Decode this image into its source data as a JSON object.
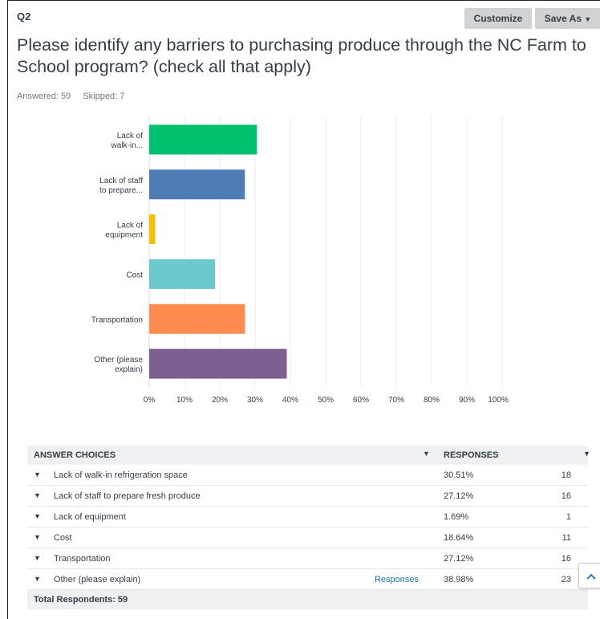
{
  "question": {
    "number": "Q2",
    "title": "Please identify any barriers to purchasing produce through the NC Farm to School program? (check all that apply)",
    "answered": "Answered: 59",
    "skipped": "Skipped: 7"
  },
  "toolbar": {
    "customize_label": "Customize",
    "save_as_label": "Save As"
  },
  "chart_data": {
    "type": "bar",
    "orientation": "horizontal",
    "categories": [
      [
        "Lack of",
        "walk-in..."
      ],
      [
        "Lack of staff",
        "to prepare..."
      ],
      [
        "Lack of",
        "equipment"
      ],
      [
        "Cost"
      ],
      [
        "Transportation"
      ],
      [
        "Other (please",
        "explain)"
      ]
    ],
    "values": [
      30.51,
      27.12,
      1.69,
      18.64,
      27.12,
      38.98
    ],
    "colors": [
      "#00bf6f",
      "#507cb6",
      "#f9be00",
      "#6bc8cd",
      "#ff8b4f",
      "#7d5e90"
    ],
    "xlim": [
      0,
      100
    ],
    "xticks": [
      "0%",
      "10%",
      "20%",
      "30%",
      "40%",
      "50%",
      "60%",
      "70%",
      "80%",
      "90%",
      "100%"
    ],
    "grid": true
  },
  "table": {
    "col_choices": "ANSWER CHOICES",
    "col_responses": "RESPONSES",
    "rows": [
      {
        "label": "Lack of walk-in refrigeration space",
        "pct": "30.51%",
        "count": "18"
      },
      {
        "label": "Lack of staff to prepare fresh produce",
        "pct": "27.12%",
        "count": "16"
      },
      {
        "label": "Lack of equipment",
        "pct": "1.69%",
        "count": "1"
      },
      {
        "label": "Cost",
        "pct": "18.64%",
        "count": "11"
      },
      {
        "label": "Transportation",
        "pct": "27.12%",
        "count": "16"
      },
      {
        "label": "Other (please explain)",
        "pct": "38.98%",
        "count": "23",
        "link": "Responses"
      }
    ],
    "total": "Total Respondents: 59"
  },
  "icons": {
    "caret": "▼",
    "row_caret": "⏷",
    "scroll_up": "^"
  }
}
